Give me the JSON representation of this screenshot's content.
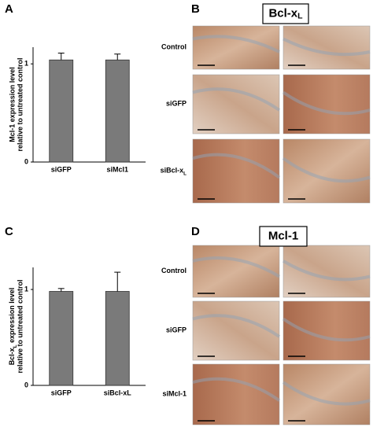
{
  "chart_data": [
    {
      "type": "bar",
      "panel": "A",
      "ylabel": [
        "Mcl-1 expression level",
        "relative to untreated control"
      ],
      "categories": [
        "siGFP",
        "siMcl1"
      ],
      "values": [
        1.04,
        1.04
      ],
      "errors": [
        0.07,
        0.06
      ],
      "color": "#7a7a7a",
      "ylim": [
        0,
        1.17
      ],
      "yticks": [
        0,
        1
      ]
    },
    {
      "type": "bar",
      "panel": "C",
      "ylabel": [
        "Bcl-x",
        "L",
        " expression level",
        "relative to untreated control"
      ],
      "categories": [
        "siGFP",
        "siBcl-xL"
      ],
      "values": [
        0.98,
        0.98
      ],
      "errors": [
        0.03,
        0.2
      ],
      "color": "#7a7a7a",
      "ylim": [
        0,
        1.23
      ],
      "yticks": [
        0,
        1
      ]
    }
  ],
  "panels": {
    "B": {
      "label": "B",
      "title": [
        "Bcl-x",
        "L"
      ],
      "rows": [
        [
          "Control"
        ],
        [
          "siGFP"
        ],
        [
          "siBcl-x",
          "L"
        ]
      ]
    },
    "D": {
      "label": "D",
      "title": [
        "Mcl-1"
      ],
      "rows": [
        [
          "Control"
        ],
        [
          "siGFP"
        ],
        [
          "siMcl-1"
        ]
      ]
    }
  }
}
